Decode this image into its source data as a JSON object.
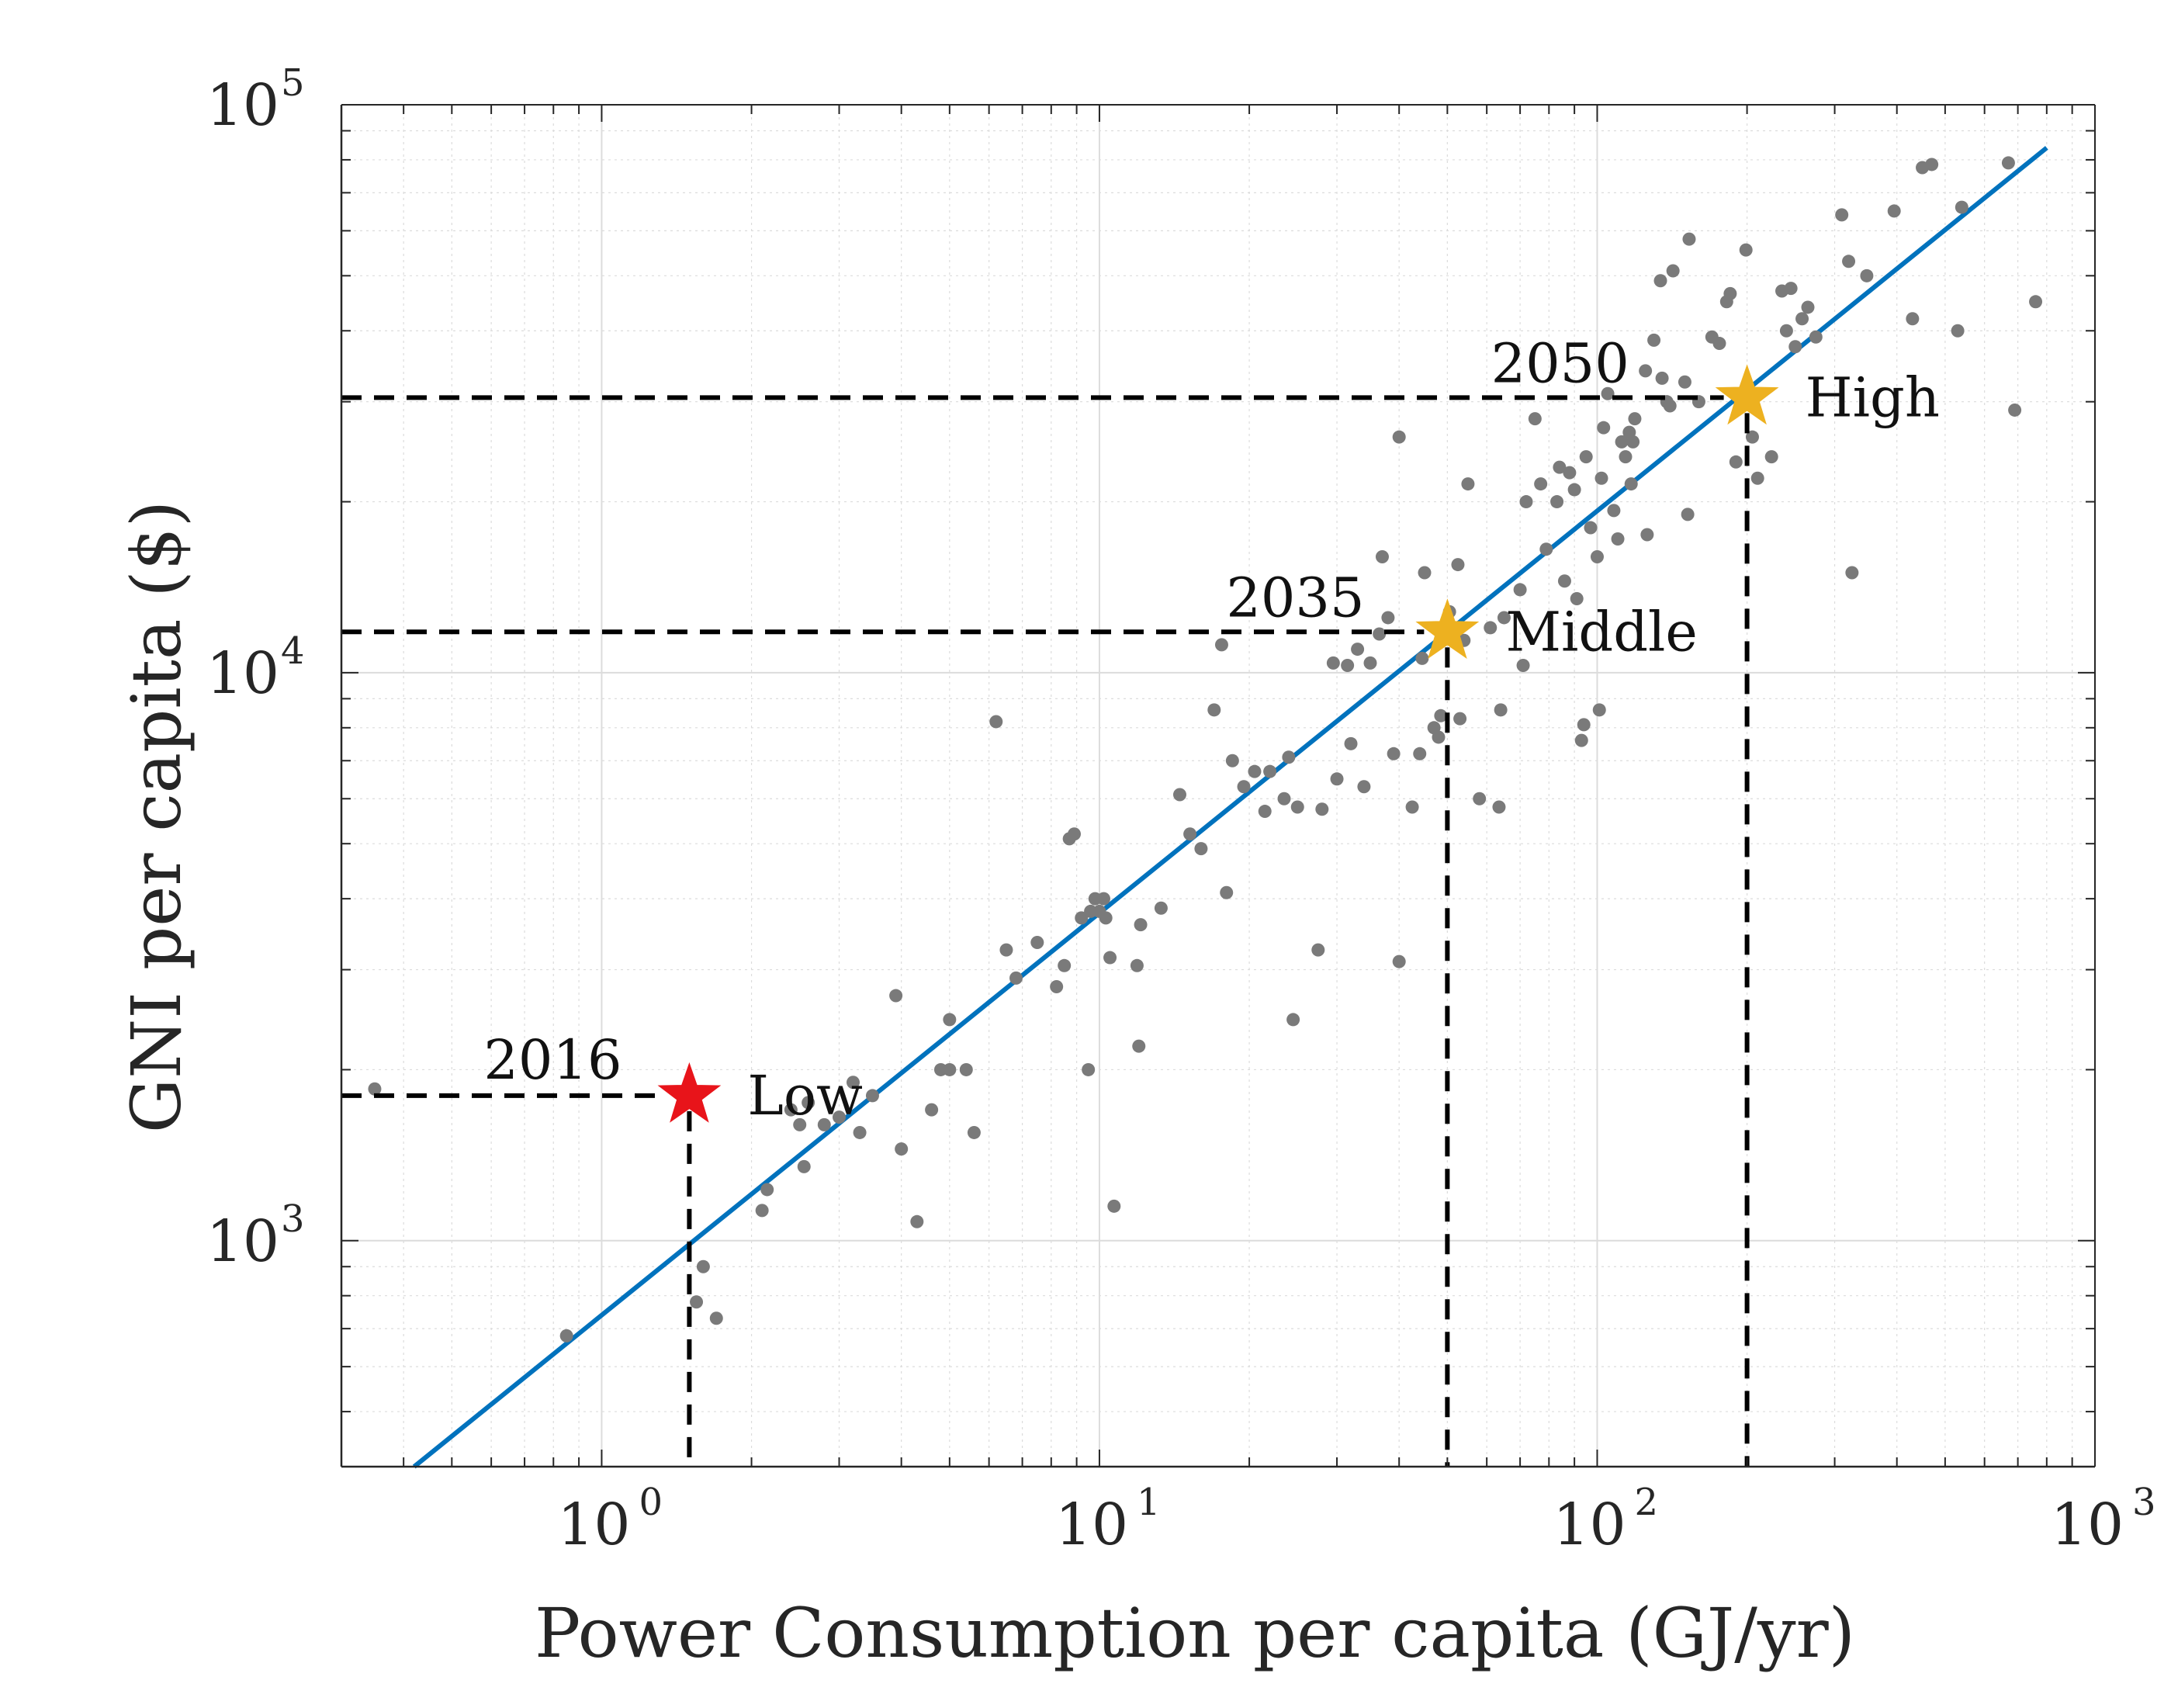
{
  "chart_data": {
    "type": "scatter",
    "title": "",
    "xlabel": "Power Consumption per capita (GJ/yr)",
    "ylabel": "GNI per capita ($)",
    "xscale": "log",
    "yscale": "log",
    "xlim": [
      0.3,
      1000
    ],
    "ylim": [
      400,
      100000
    ],
    "grid": true,
    "x_ticks": [
      {
        "value": 1,
        "base": "10",
        "exp": "0"
      },
      {
        "value": 10,
        "base": "10",
        "exp": "1"
      },
      {
        "value": 100,
        "base": "10",
        "exp": "2"
      },
      {
        "value": 1000,
        "base": "10",
        "exp": "3"
      }
    ],
    "y_ticks": [
      {
        "value": 1000,
        "base": "10",
        "exp": "3"
      },
      {
        "value": 10000,
        "base": "10",
        "exp": "4"
      },
      {
        "value": 100000,
        "base": "10",
        "exp": "5"
      }
    ],
    "colors": {
      "points": "#7a7a7a",
      "fit_line": "#0072bd",
      "low_star": "#e8141a",
      "target_star": "#edb120",
      "dashed": "#000000",
      "axis": "#262626",
      "grid": "#dcdcdc"
    },
    "fit_line": {
      "x": [
        0.42,
        800
      ],
      "y": [
        400,
        84000
      ]
    },
    "scenarios": [
      {
        "name": "Low",
        "year": "2016",
        "x": 1.5,
        "y": 1800,
        "color": "#e8141a"
      },
      {
        "name": "Middle",
        "year": "2035",
        "x": 50,
        "y": 11800,
        "color": "#edb120"
      },
      {
        "name": "High",
        "year": "2050",
        "x": 200,
        "y": 30500,
        "color": "#edb120"
      }
    ],
    "series": [
      {
        "name": "countries",
        "points": [
          [
            0.35,
            1850
          ],
          [
            0.85,
            680
          ],
          [
            1.6,
            900
          ],
          [
            1.7,
            730
          ],
          [
            1.55,
            780
          ],
          [
            2.1,
            1130
          ],
          [
            2.15,
            1230
          ],
          [
            2.4,
            1700
          ],
          [
            2.5,
            1600
          ],
          [
            2.55,
            1350
          ],
          [
            2.6,
            1750
          ],
          [
            2.8,
            1600
          ],
          [
            3.0,
            1650
          ],
          [
            3.2,
            1900
          ],
          [
            3.3,
            1550
          ],
          [
            3.5,
            1800
          ],
          [
            3.9,
            2700
          ],
          [
            4.0,
            1450
          ],
          [
            4.3,
            1080
          ],
          [
            4.6,
            1700
          ],
          [
            4.8,
            2000
          ],
          [
            5.0,
            2000
          ],
          [
            5.0,
            2450
          ],
          [
            5.4,
            2000
          ],
          [
            5.6,
            1550
          ],
          [
            6.2,
            8200
          ],
          [
            6.5,
            3250
          ],
          [
            6.8,
            2900
          ],
          [
            7.5,
            3350
          ],
          [
            8.2,
            2800
          ],
          [
            8.5,
            3050
          ],
          [
            8.7,
            5100
          ],
          [
            8.9,
            5200
          ],
          [
            9.2,
            3700
          ],
          [
            9.6,
            3800
          ],
          [
            9.8,
            4000
          ],
          [
            10.0,
            3800
          ],
          [
            10.2,
            4000
          ],
          [
            10.3,
            3700
          ],
          [
            10.5,
            3150
          ],
          [
            10.7,
            1150
          ],
          [
            9.5,
            2000
          ],
          [
            11.9,
            3050
          ],
          [
            12.1,
            3600
          ],
          [
            12.0,
            2200
          ],
          [
            13.3,
            3850
          ],
          [
            14.5,
            6100
          ],
          [
            15.2,
            5200
          ],
          [
            16.0,
            4900
          ],
          [
            17.0,
            8600
          ],
          [
            17.6,
            11200
          ],
          [
            18.0,
            4100
          ],
          [
            18.5,
            7000
          ],
          [
            19.5,
            6300
          ],
          [
            20.5,
            6700
          ],
          [
            21.5,
            5700
          ],
          [
            22.0,
            6700
          ],
          [
            23.5,
            6000
          ],
          [
            24.0,
            7100
          ],
          [
            24.5,
            2450
          ],
          [
            25.0,
            5800
          ],
          [
            27.5,
            3250
          ],
          [
            28.0,
            5750
          ],
          [
            29.5,
            10400
          ],
          [
            30.0,
            6500
          ],
          [
            31.5,
            10300
          ],
          [
            32.0,
            7500
          ],
          [
            33.0,
            11000
          ],
          [
            34.0,
            6300
          ],
          [
            35.0,
            10400
          ],
          [
            36.5,
            11700
          ],
          [
            37.0,
            16000
          ],
          [
            38.0,
            12500
          ],
          [
            39.0,
            7200
          ],
          [
            40.0,
            26000
          ],
          [
            40.0,
            3100
          ],
          [
            42.5,
            5800
          ],
          [
            44.0,
            7200
          ],
          [
            44.5,
            10600
          ],
          [
            45.0,
            15000
          ],
          [
            47.0,
            8000
          ],
          [
            48.0,
            7700
          ],
          [
            48.5,
            8400
          ],
          [
            50.5,
            12800
          ],
          [
            52.5,
            15500
          ],
          [
            53.0,
            8300
          ],
          [
            54.0,
            11400
          ],
          [
            55.0,
            21500
          ],
          [
            58.0,
            6000
          ],
          [
            61.0,
            12000
          ],
          [
            63.5,
            5800
          ],
          [
            64.0,
            8600
          ],
          [
            65.0,
            12500
          ],
          [
            70.0,
            14000
          ],
          [
            71.0,
            10300
          ],
          [
            72.0,
            20000
          ],
          [
            75.0,
            28000
          ],
          [
            77.0,
            21500
          ],
          [
            79.0,
            16500
          ],
          [
            83.0,
            20000
          ],
          [
            84.0,
            23000
          ],
          [
            86.0,
            14500
          ],
          [
            88.0,
            22500
          ],
          [
            90.0,
            21000
          ],
          [
            91.0,
            13500
          ],
          [
            93.0,
            7600
          ],
          [
            94.0,
            8100
          ],
          [
            95.0,
            24000
          ],
          [
            97.0,
            18000
          ],
          [
            100.0,
            16000
          ],
          [
            101.0,
            8600
          ],
          [
            102.0,
            22000
          ],
          [
            103.0,
            27000
          ],
          [
            105.0,
            31000
          ],
          [
            108.0,
            19300
          ],
          [
            110.0,
            17200
          ],
          [
            112.0,
            25500
          ],
          [
            114.0,
            24000
          ],
          [
            116.0,
            26500
          ],
          [
            117.0,
            21500
          ],
          [
            118.0,
            25500
          ],
          [
            119.0,
            28000
          ],
          [
            125.0,
            34000
          ],
          [
            126.0,
            17500
          ],
          [
            130.0,
            38500
          ],
          [
            134.0,
            49000
          ],
          [
            135.0,
            33000
          ],
          [
            138.0,
            30000
          ],
          [
            140.0,
            29500
          ],
          [
            142.0,
            51000
          ],
          [
            150.0,
            32500
          ],
          [
            152.0,
            19000
          ],
          [
            153.0,
            58000
          ],
          [
            160.0,
            30000
          ],
          [
            170.0,
            39000
          ],
          [
            176.0,
            38000
          ],
          [
            182.0,
            45000
          ],
          [
            185.0,
            46500
          ],
          [
            190.0,
            23500
          ],
          [
            199.0,
            55500
          ],
          [
            205.0,
            26000
          ],
          [
            210.0,
            22000
          ],
          [
            224.0,
            24000
          ],
          [
            235.0,
            47000
          ],
          [
            240.0,
            40000
          ],
          [
            245.0,
            47500
          ],
          [
            250.0,
            37500
          ],
          [
            258.0,
            42000
          ],
          [
            265.0,
            44000
          ],
          [
            275.0,
            39000
          ],
          [
            310.0,
            64000
          ],
          [
            320.0,
            53000
          ],
          [
            325.0,
            15000
          ],
          [
            348.0,
            50000
          ],
          [
            395.0,
            65000
          ],
          [
            430.0,
            42000
          ],
          [
            450.0,
            77500
          ],
          [
            470.0,
            78500
          ],
          [
            530.0,
            40000
          ],
          [
            540.0,
            66000
          ],
          [
            670.0,
            79000
          ],
          [
            690.0,
            29000
          ],
          [
            760.0,
            45000
          ]
        ]
      }
    ]
  }
}
